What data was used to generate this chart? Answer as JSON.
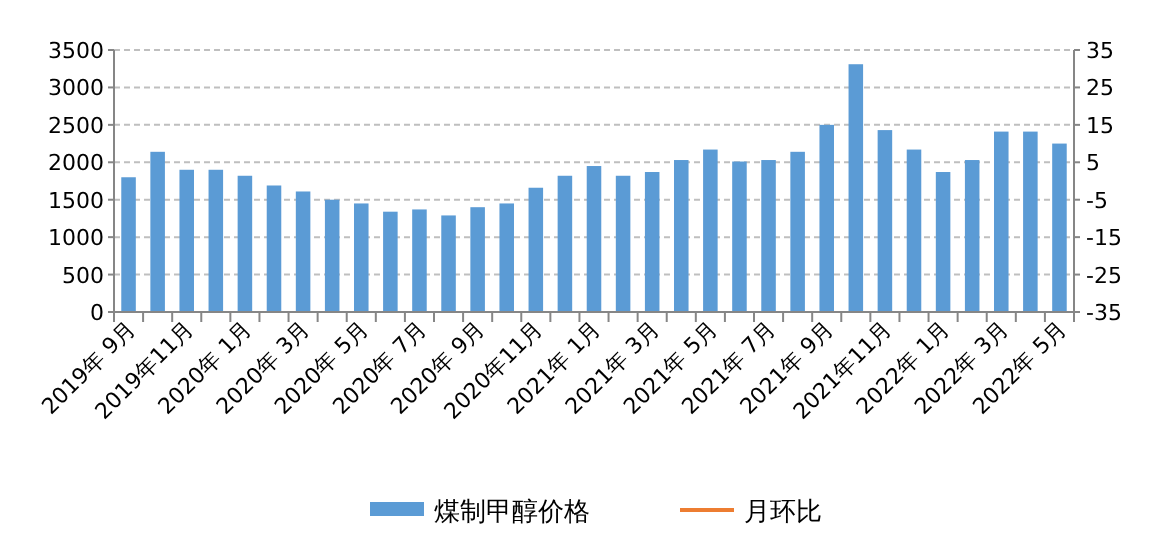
{
  "chart_data": {
    "type": "bar",
    "categories": [
      "2019年 9月",
      null,
      "2019年11月",
      null,
      "2020年 1月",
      null,
      "2020年 3月",
      null,
      "2020年 5月",
      null,
      "2020年 7月",
      null,
      "2020年 9月",
      null,
      "2020年11月",
      null,
      "2021年 1月",
      null,
      "2021年 3月",
      null,
      "2021年 5月",
      null,
      "2021年 7月",
      null,
      "2021年 9月",
      null,
      "2021年11月",
      null,
      "2022年 1月",
      null,
      "2022年 3月",
      null,
      "2022年 5月"
    ],
    "series": [
      {
        "name": "煤制甲醇价格",
        "color": "#5b9bd5",
        "values": [
          1800,
          2140,
          1900,
          1900,
          1820,
          1690,
          1610,
          1500,
          1450,
          1340,
          1370,
          1290,
          1400,
          1450,
          1660,
          1820,
          1950,
          1820,
          1870,
          2030,
          2170,
          2010,
          2030,
          2140,
          2500,
          3310,
          2430,
          2170,
          1870,
          2030,
          2410,
          2410,
          2250
        ]
      },
      {
        "name": "月环比",
        "type": "line",
        "axis": "y2",
        "color": "#ed7d31",
        "values": [
          null,
          null,
          null,
          null,
          null,
          null,
          null,
          null,
          null,
          null,
          null,
          null,
          null,
          null,
          null,
          null,
          null,
          null,
          null,
          null,
          null,
          null,
          null,
          null,
          null,
          null,
          null,
          null,
          null,
          null,
          null,
          null,
          null
        ]
      }
    ],
    "ylim": [
      0,
      3500
    ],
    "yticks": [
      0,
      500,
      1000,
      1500,
      2000,
      2500,
      3000,
      3500
    ],
    "y2lim": [
      -35,
      35
    ],
    "y2ticks": [
      -35,
      -25,
      -15,
      -5,
      5,
      15,
      25,
      35
    ],
    "grid": "y",
    "legend": "bottom"
  }
}
